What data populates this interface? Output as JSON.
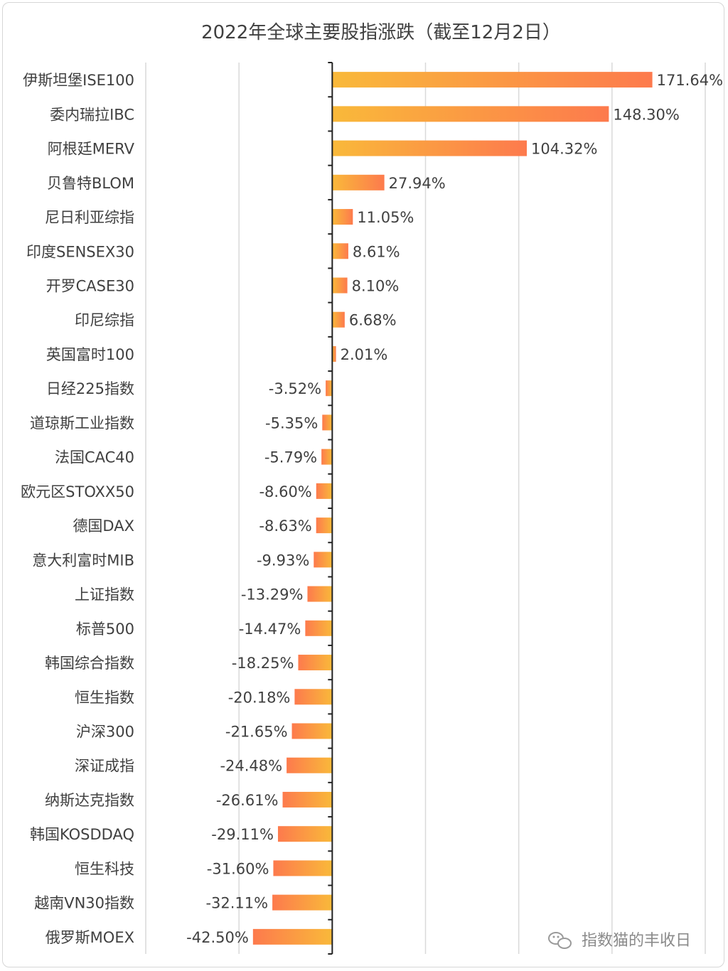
{
  "chart_data": {
    "type": "bar",
    "orientation": "horizontal",
    "title": "2022年全球主要股指涨跌（截至12月2日）",
    "grid": true,
    "value_suffix": "%",
    "categories": [
      "伊斯坦堡ISE100",
      "委内瑞拉IBC",
      "阿根廷MERV",
      "贝鲁特BLOM",
      "尼日利亚综指",
      "印度SENSEX30",
      "开罗CASE30",
      "印尼综指",
      "英国富时100",
      "日经225指数",
      "道琼斯工业指数",
      "法国CAC40",
      "欧元区STOXX50",
      "德国DAX",
      "意大利富时MIB",
      "上证指数",
      "标普500",
      "韩国综合指数",
      "恒生指数",
      "沪深300",
      "深证成指",
      "纳斯达克指数",
      "韩国KOSDDAQ",
      "恒生科技",
      "越南VN30指数",
      "俄罗斯MOEX"
    ],
    "values": [
      171.64,
      148.3,
      104.32,
      27.94,
      11.05,
      8.61,
      8.1,
      6.68,
      2.01,
      -3.52,
      -5.35,
      -5.79,
      -8.6,
      -8.63,
      -9.93,
      -13.29,
      -14.47,
      -18.25,
      -20.18,
      -21.65,
      -24.48,
      -26.61,
      -29.11,
      -31.6,
      -32.11,
      -42.5
    ],
    "xlim": [
      -100,
      200
    ],
    "colors": {
      "gradient_start": "#f9b93a",
      "gradient_end": "#fd7a4d",
      "axis": "#222222",
      "grid": "#d9d9d9"
    }
  },
  "watermark": {
    "text": "指数猫的丰收日",
    "icon": "wechat-icon"
  }
}
